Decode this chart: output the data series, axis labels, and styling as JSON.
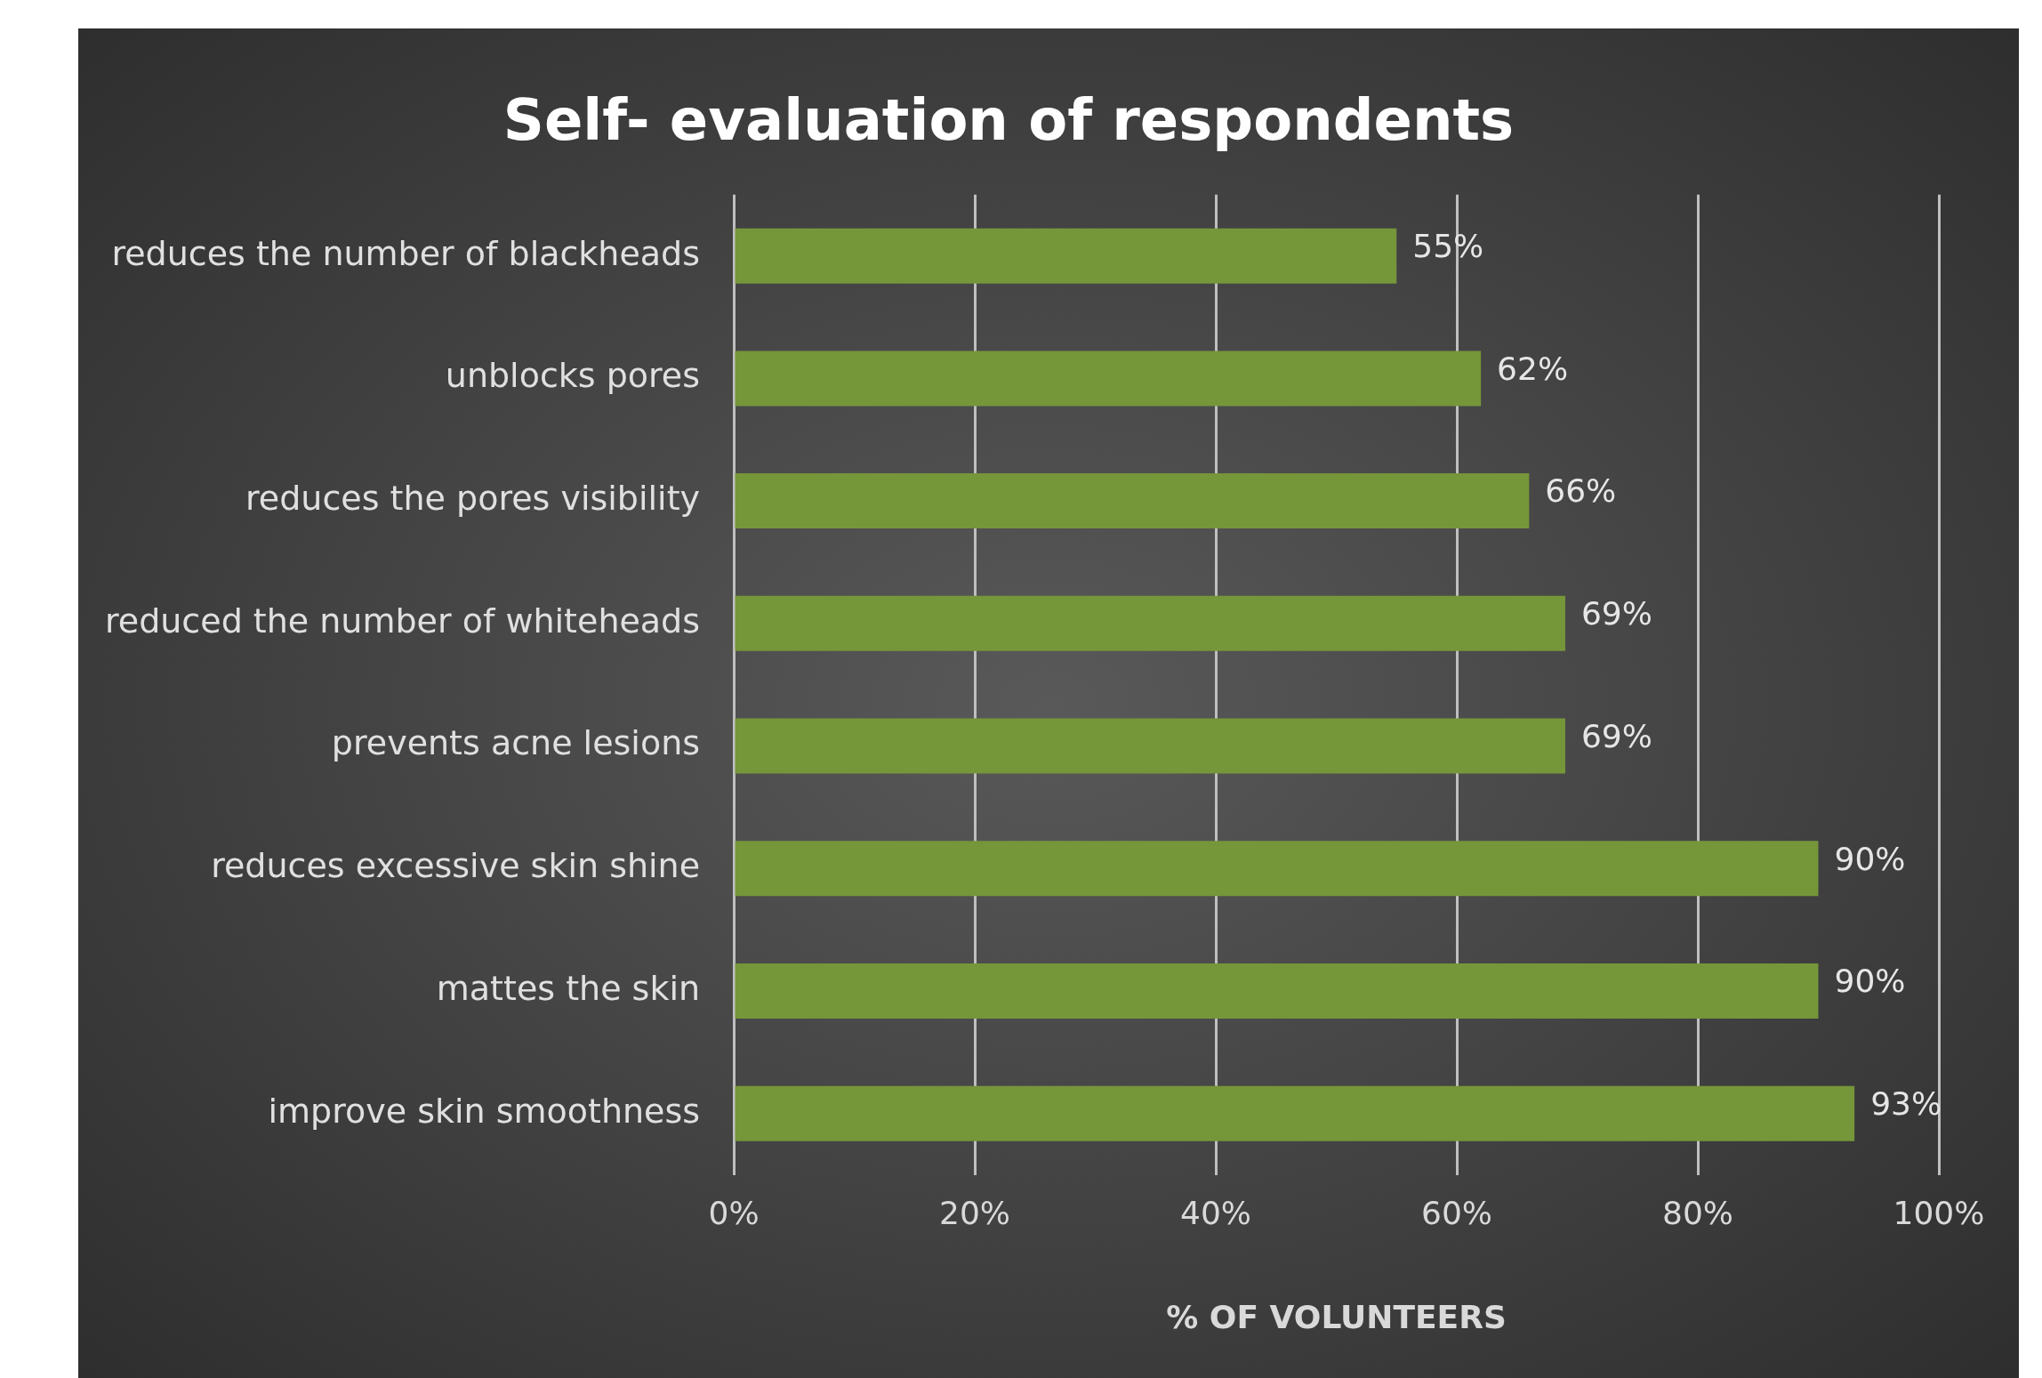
{
  "chart_data": {
    "type": "bar",
    "orientation": "horizontal",
    "title": "Self- evaluation of respondents",
    "xlabel": "% OF VOLUNTEERS",
    "categories": [
      "reduces the number of blackheads",
      "unblocks pores",
      "reduces the pores visibility",
      "reduced the number of whiteheads",
      "prevents acne lesions",
      "reduces excessive skin shine",
      "mattes the skin",
      "improve skin smoothness"
    ],
    "values": [
      55,
      62,
      66,
      69,
      69,
      90,
      90,
      93
    ],
    "value_labels": [
      "55%",
      "62%",
      "66%",
      "69%",
      "69%",
      "90%",
      "90%",
      "93%"
    ],
    "color": "#76963a",
    "xlim": [
      0,
      100
    ],
    "xticks": [
      {
        "value": 0,
        "label": "0%"
      },
      {
        "value": 20,
        "label": "20%"
      },
      {
        "value": 40,
        "label": "40%"
      },
      {
        "value": 60,
        "label": "60%"
      },
      {
        "value": 80,
        "label": "80%"
      },
      {
        "value": 100,
        "label": "100%"
      }
    ],
    "grid": "x",
    "legend": false
  }
}
